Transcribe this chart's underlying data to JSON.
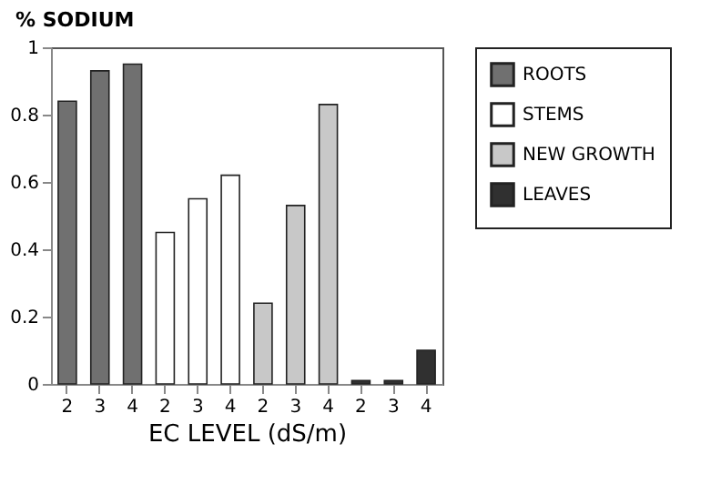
{
  "chart_data": {
    "type": "bar",
    "ylabel": "% SODIUM",
    "xlabel": "EC LEVEL (dS/m)",
    "categories": [
      "2",
      "3",
      "4",
      "2",
      "3",
      "4",
      "2",
      "3",
      "4",
      "2",
      "3",
      "4"
    ],
    "series": [
      {
        "name": "ROOTS",
        "color": "#707070",
        "values": [
          0.84,
          0.93,
          0.95,
          null,
          null,
          null,
          null,
          null,
          null,
          null,
          null,
          null
        ]
      },
      {
        "name": "STEMS",
        "color": "#ffffff",
        "values": [
          null,
          null,
          null,
          0.45,
          0.55,
          0.62,
          null,
          null,
          null,
          null,
          null,
          null
        ]
      },
      {
        "name": "NEW GROWTH",
        "color": "#c8c8c8",
        "values": [
          null,
          null,
          null,
          null,
          null,
          null,
          0.24,
          0.53,
          0.83,
          null,
          null,
          null
        ]
      },
      {
        "name": "LEAVES",
        "color": "#303030",
        "values": [
          null,
          null,
          null,
          null,
          null,
          null,
          null,
          null,
          null,
          0.01,
          0.01,
          0.1
        ]
      }
    ],
    "ylim": [
      0,
      1
    ],
    "yticks": [
      0,
      0.2,
      0.4,
      0.6,
      0.8,
      1
    ],
    "grid": false,
    "legend": "right"
  }
}
